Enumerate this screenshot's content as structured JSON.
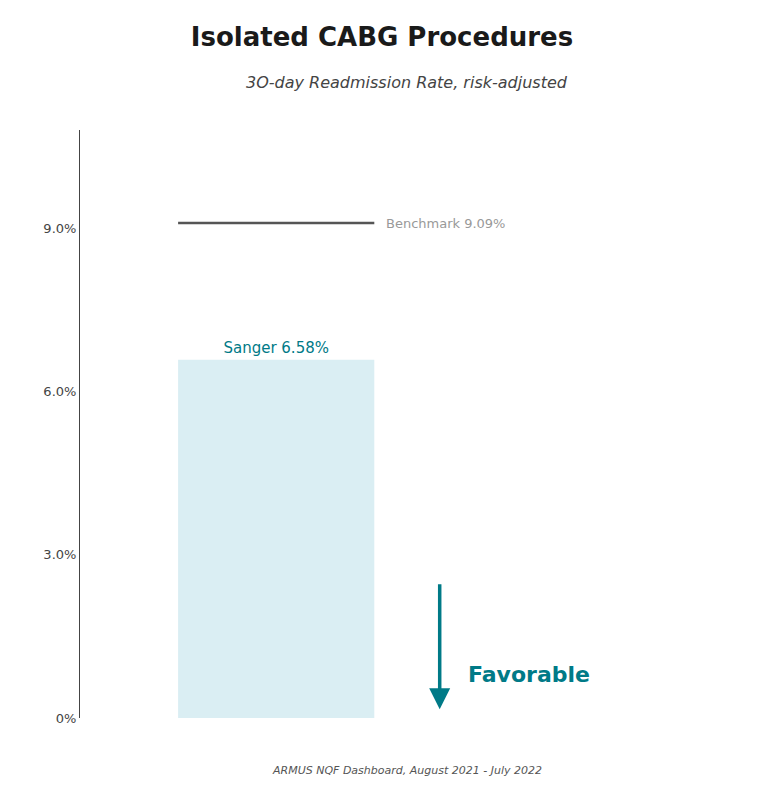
{
  "chart_data": {
    "type": "bar",
    "title": "Isolated CABG Procedures",
    "subtitle": "3O-day Readmission Rate, risk-adjusted",
    "footnote": "ARMUS NQF Dashboard, August 2021 - July 2022",
    "categories": [
      null
    ],
    "values": [
      6.58
    ],
    "value_labels": [
      "Sanger 6.58%"
    ],
    "data_labels": true,
    "color": "#daeef3",
    "benchmark": {
      "value": 9.09,
      "label": "Benchmark 9.09%",
      "color": "#555555"
    },
    "annotations": [
      {
        "text": "Favorable",
        "color": "#007a87"
      }
    ],
    "ylim": [
      0,
      10.8
    ],
    "yticks": [
      {
        "value": 0,
        "label": "0%"
      },
      {
        "value": 3.0,
        "label": "3.0%"
      },
      {
        "value": 6.0,
        "label": "6.0%"
      },
      {
        "value": 9.0,
        "label": "9.0%"
      }
    ],
    "grid": false,
    "tick_labels": "y"
  }
}
